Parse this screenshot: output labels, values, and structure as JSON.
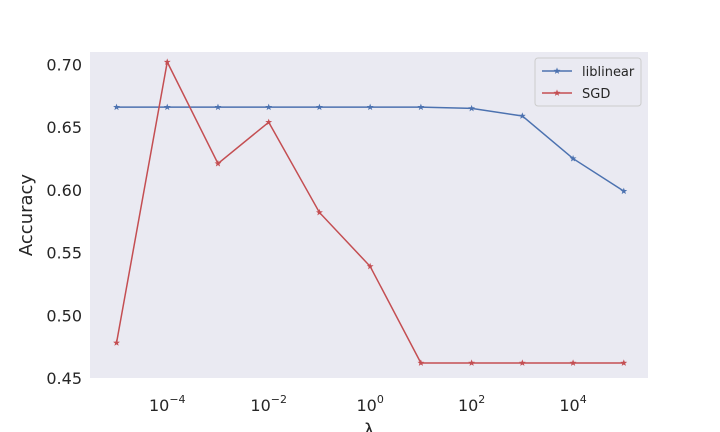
{
  "chart_data": {
    "type": "line",
    "title": "",
    "xlabel": "λ",
    "ylabel": "Accuracy",
    "x_scale": "log",
    "x": [
      1e-05,
      0.0001,
      0.001,
      0.01,
      0.1,
      1,
      10,
      100,
      1000,
      10000,
      100000
    ],
    "xlim": [
      3e-06,
      300000.0
    ],
    "ylim": [
      0.45,
      0.71
    ],
    "grid": false,
    "legend_position": "top-right",
    "x_ticks": [
      {
        "value": 0.0001,
        "base": "10",
        "exp": "−4"
      },
      {
        "value": 0.01,
        "base": "10",
        "exp": "−2"
      },
      {
        "value": 1,
        "base": "10",
        "exp": "0"
      },
      {
        "value": 100,
        "base": "10",
        "exp": "2"
      },
      {
        "value": 10000,
        "base": "10",
        "exp": "4"
      }
    ],
    "y_ticks": [
      "0.45",
      "0.50",
      "0.55",
      "0.60",
      "0.65",
      "0.70"
    ],
    "series": [
      {
        "name": "liblinear",
        "color": "#4c72b0",
        "marker": "star",
        "values": [
          0.666,
          0.666,
          0.666,
          0.666,
          0.666,
          0.666,
          0.666,
          0.665,
          0.659,
          0.625,
          0.599
        ]
      },
      {
        "name": "SGD",
        "color": "#c44e52",
        "marker": "star",
        "values": [
          0.478,
          0.702,
          0.621,
          0.654,
          0.582,
          0.539,
          0.462,
          0.462,
          0.462,
          0.462,
          0.462
        ]
      }
    ]
  }
}
